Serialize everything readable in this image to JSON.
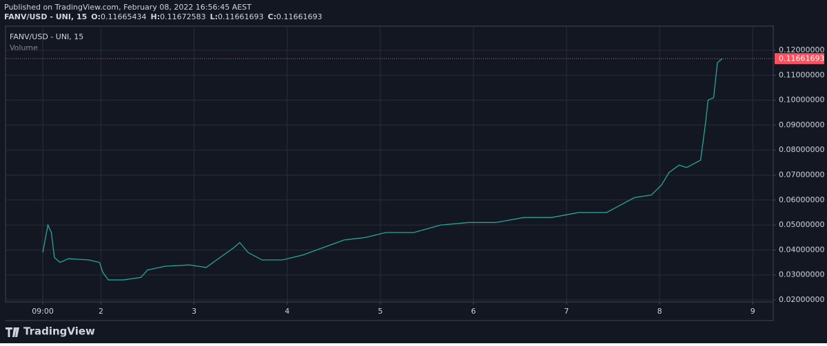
{
  "header": {
    "published": "Published on TradingView.com, February 08, 2022 16:56:45 AEST"
  },
  "footer": {
    "brand": "TradingView"
  },
  "chart_data": {
    "type": "line",
    "title": "FANV/USD - UNI, 15",
    "ohlc_labels": [
      "O:",
      "H:",
      "L:",
      "C:"
    ],
    "ohlc_values": [
      0.11665434,
      0.11672583,
      0.11661693,
      0.11661693
    ],
    "volume_label": "Volume",
    "last_price": 0.11661693,
    "last_price_color": "#f7525f",
    "grid": true,
    "xlim": [
      0.975,
      9.22
    ],
    "xticks": [
      {
        "value": 1.375,
        "label": "09:00"
      },
      2,
      3,
      4,
      5,
      6,
      7,
      8,
      9
    ],
    "ylim": [
      0.01917,
      0.12964
    ],
    "yticks": [
      {
        "value": 0.02,
        "label": "0.02000000"
      },
      {
        "value": 0.03,
        "label": "0.03000000"
      },
      {
        "value": 0.04,
        "label": "0.04000000"
      },
      {
        "value": 0.05,
        "label": "0.05000000"
      },
      {
        "value": 0.06,
        "label": "0.06000000"
      },
      {
        "value": 0.07,
        "label": "0.07000000"
      },
      {
        "value": 0.08,
        "label": "0.08000000"
      },
      {
        "value": 0.09,
        "label": "0.09000000"
      },
      {
        "value": 0.1,
        "label": "0.10000000"
      },
      {
        "value": 0.11,
        "label": "0.11000000"
      },
      {
        "value": 0.12,
        "label": "0.12000000"
      }
    ],
    "x": [
      1.375,
      1.43,
      1.467,
      1.5,
      1.56,
      1.65,
      1.87,
      1.985,
      2.02,
      2.08,
      2.24,
      2.43,
      2.5,
      2.69,
      2.95,
      3.13,
      3.28,
      3.43,
      3.49,
      3.58,
      3.73,
      3.95,
      4.17,
      4.39,
      4.61,
      4.84,
      5.06,
      5.36,
      5.65,
      5.95,
      6.24,
      6.54,
      6.84,
      7.13,
      7.43,
      7.58,
      7.73,
      7.91,
      8.02,
      8.1,
      8.21,
      8.29,
      8.44,
      8.49,
      8.52,
      8.58,
      8.62,
      8.67
    ],
    "series": [
      {
        "color": "#26a69a",
        "values": [
          0.039,
          0.05,
          0.047,
          0.037,
          0.035,
          0.0365,
          0.036,
          0.035,
          0.031,
          0.028,
          0.028,
          0.029,
          0.032,
          0.0335,
          0.034,
          0.033,
          0.037,
          0.041,
          0.043,
          0.039,
          0.036,
          0.036,
          0.038,
          0.041,
          0.044,
          0.045,
          0.047,
          0.047,
          0.05,
          0.051,
          0.051,
          0.053,
          0.053,
          0.055,
          0.055,
          0.058,
          0.061,
          0.062,
          0.066,
          0.071,
          0.074,
          0.073,
          0.076,
          0.09,
          0.1,
          0.101,
          0.115,
          0.11661693
        ]
      }
    ]
  }
}
